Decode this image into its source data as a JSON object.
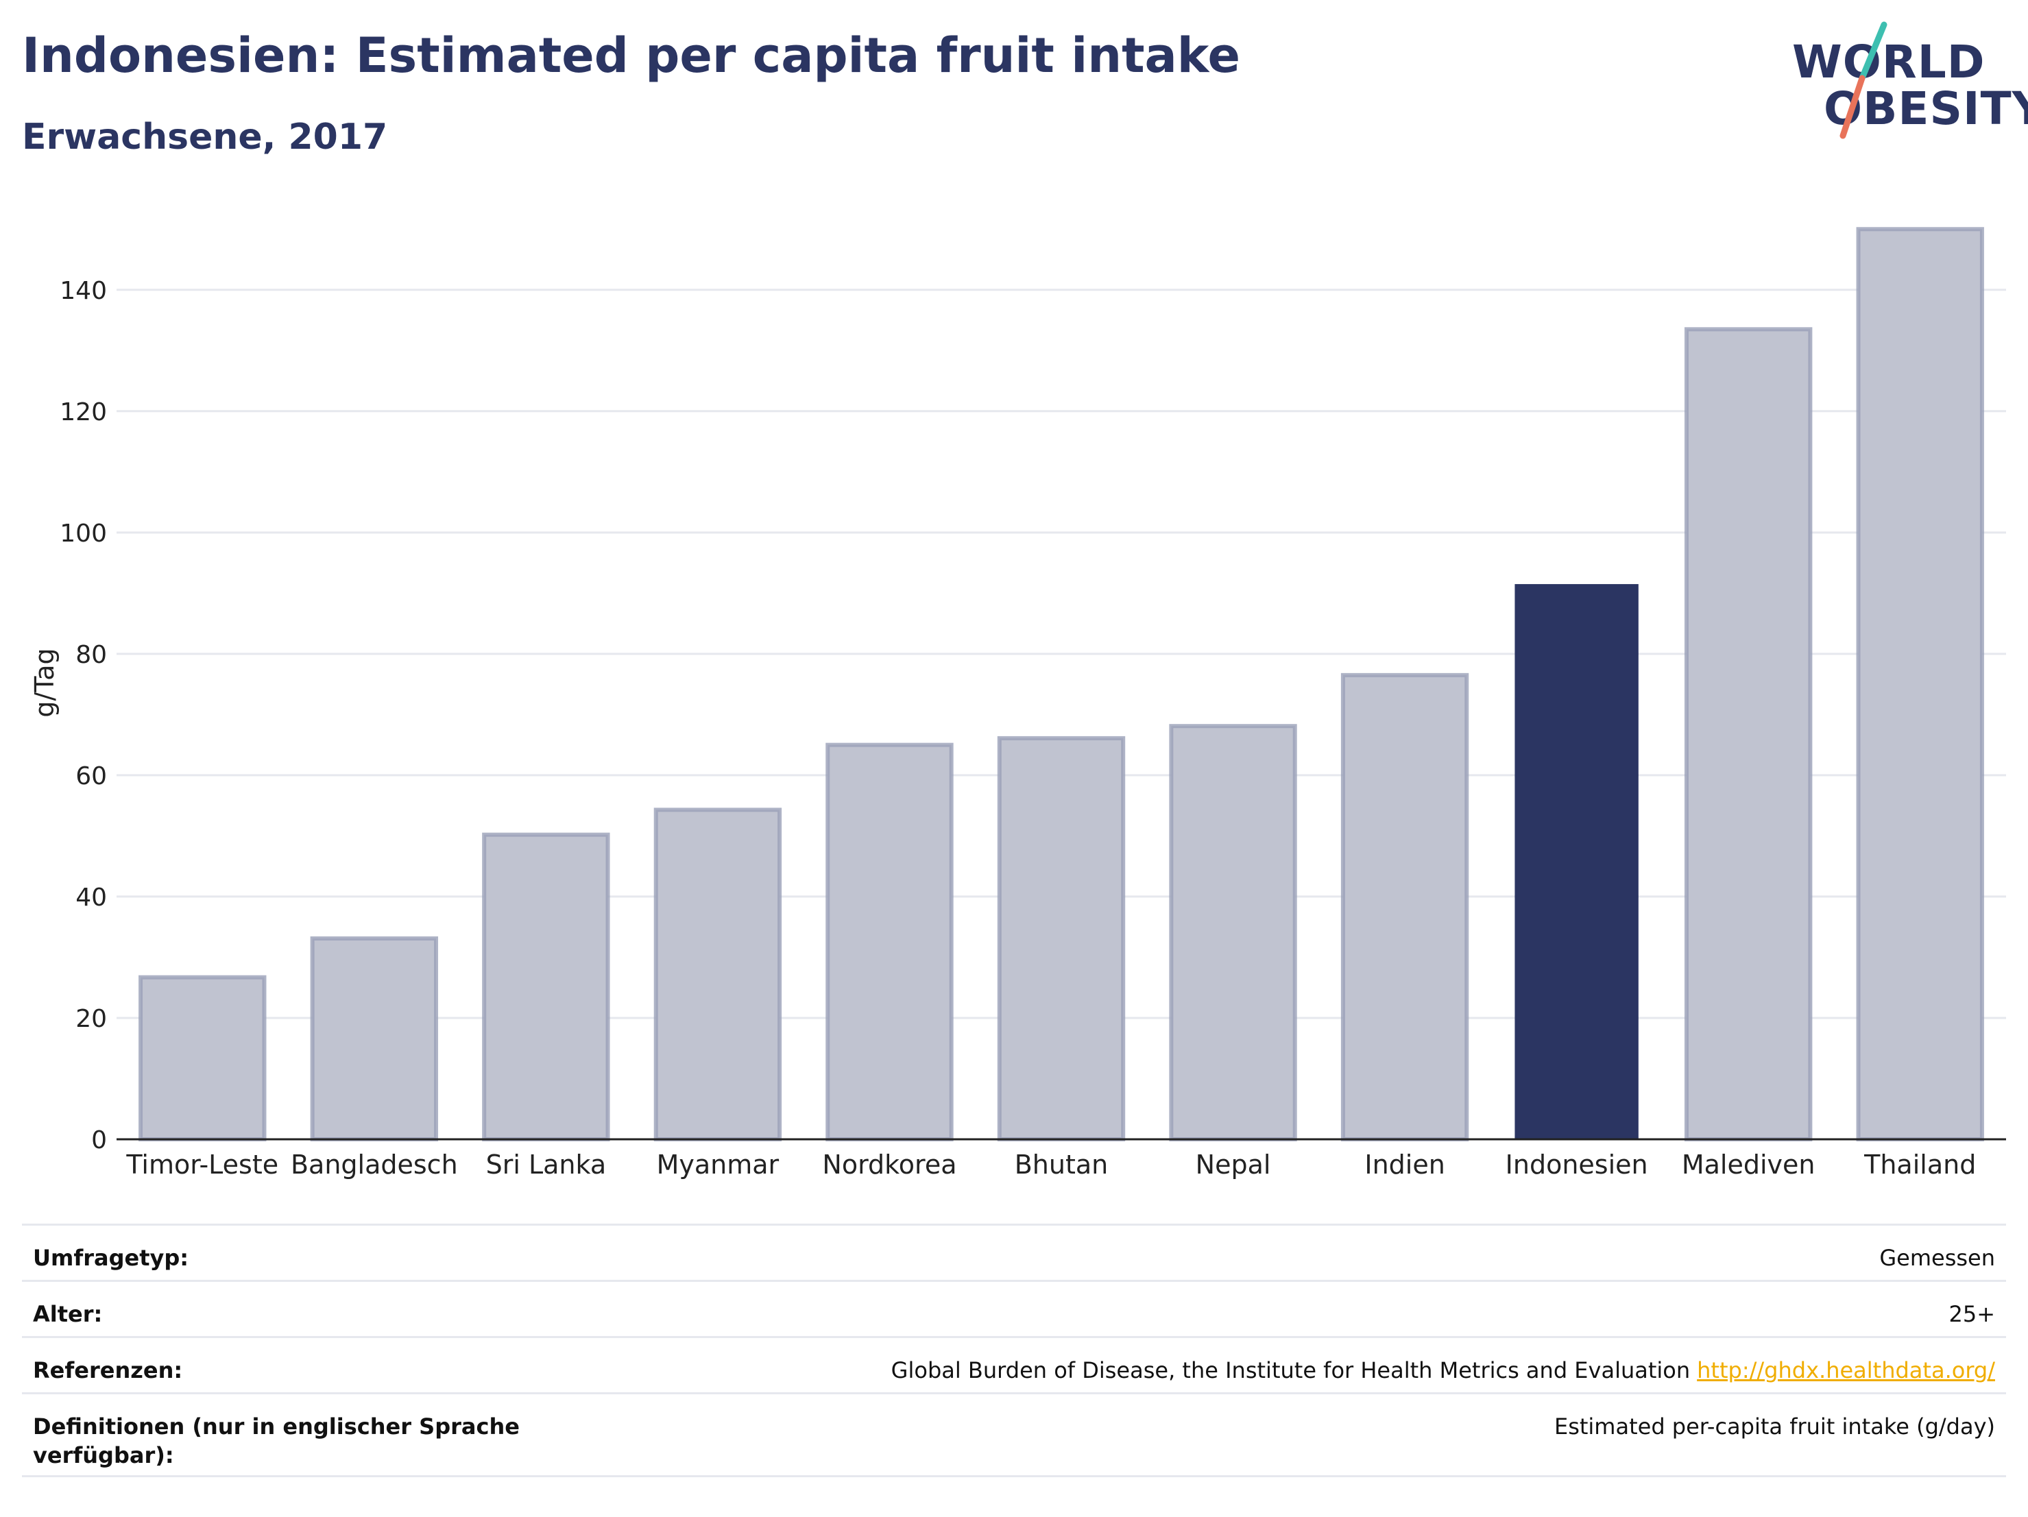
{
  "header": {
    "title": "Indonesien: Estimated per capita fruit intake",
    "subtitle": "Erwachsene, 2017"
  },
  "logo": {
    "line1": "WORLD",
    "line2": "OBESITY",
    "colors": {
      "text": "#2b3562",
      "slash_top": "#3dbfb0",
      "slash_bottom": "#e8735a"
    }
  },
  "chart_data": {
    "type": "bar",
    "categories": [
      "Timor-Leste",
      "Bangladesch",
      "Sri Lanka",
      "Myanmar",
      "Nordkorea",
      "Bhutan",
      "Nepal",
      "Indien",
      "Indonesien",
      "Malediven",
      "Thailand"
    ],
    "values": [
      26.7,
      33.1,
      50.2,
      54.3,
      65.0,
      66.1,
      68.1,
      76.5,
      91.5,
      133.5,
      150.0
    ],
    "highlight": "Indonesien",
    "xlabel": "",
    "ylabel": "g/Tag",
    "ylim": [
      0,
      155
    ],
    "yticks": [
      0,
      20,
      40,
      60,
      80,
      100,
      120,
      140
    ],
    "grid": true,
    "colors": {
      "bar": "#c0c3d0",
      "bar_edge": "#9aa0b8",
      "highlight": "#2b3562",
      "grid": "#e6e8ee"
    }
  },
  "meta": [
    {
      "key": "Umfragetyp:",
      "value": "Gemessen"
    },
    {
      "key": "Alter:",
      "value": "25+"
    },
    {
      "key": "Referenzen:",
      "value": "Global Burden of Disease, the Institute for Health Metrics and Evaluation",
      "link": "http://ghdx.healthdata.org/"
    },
    {
      "key": "Definitionen (nur in englischer Sprache verfügbar):",
      "value": "Estimated per-capita fruit intake (g/day)"
    }
  ]
}
